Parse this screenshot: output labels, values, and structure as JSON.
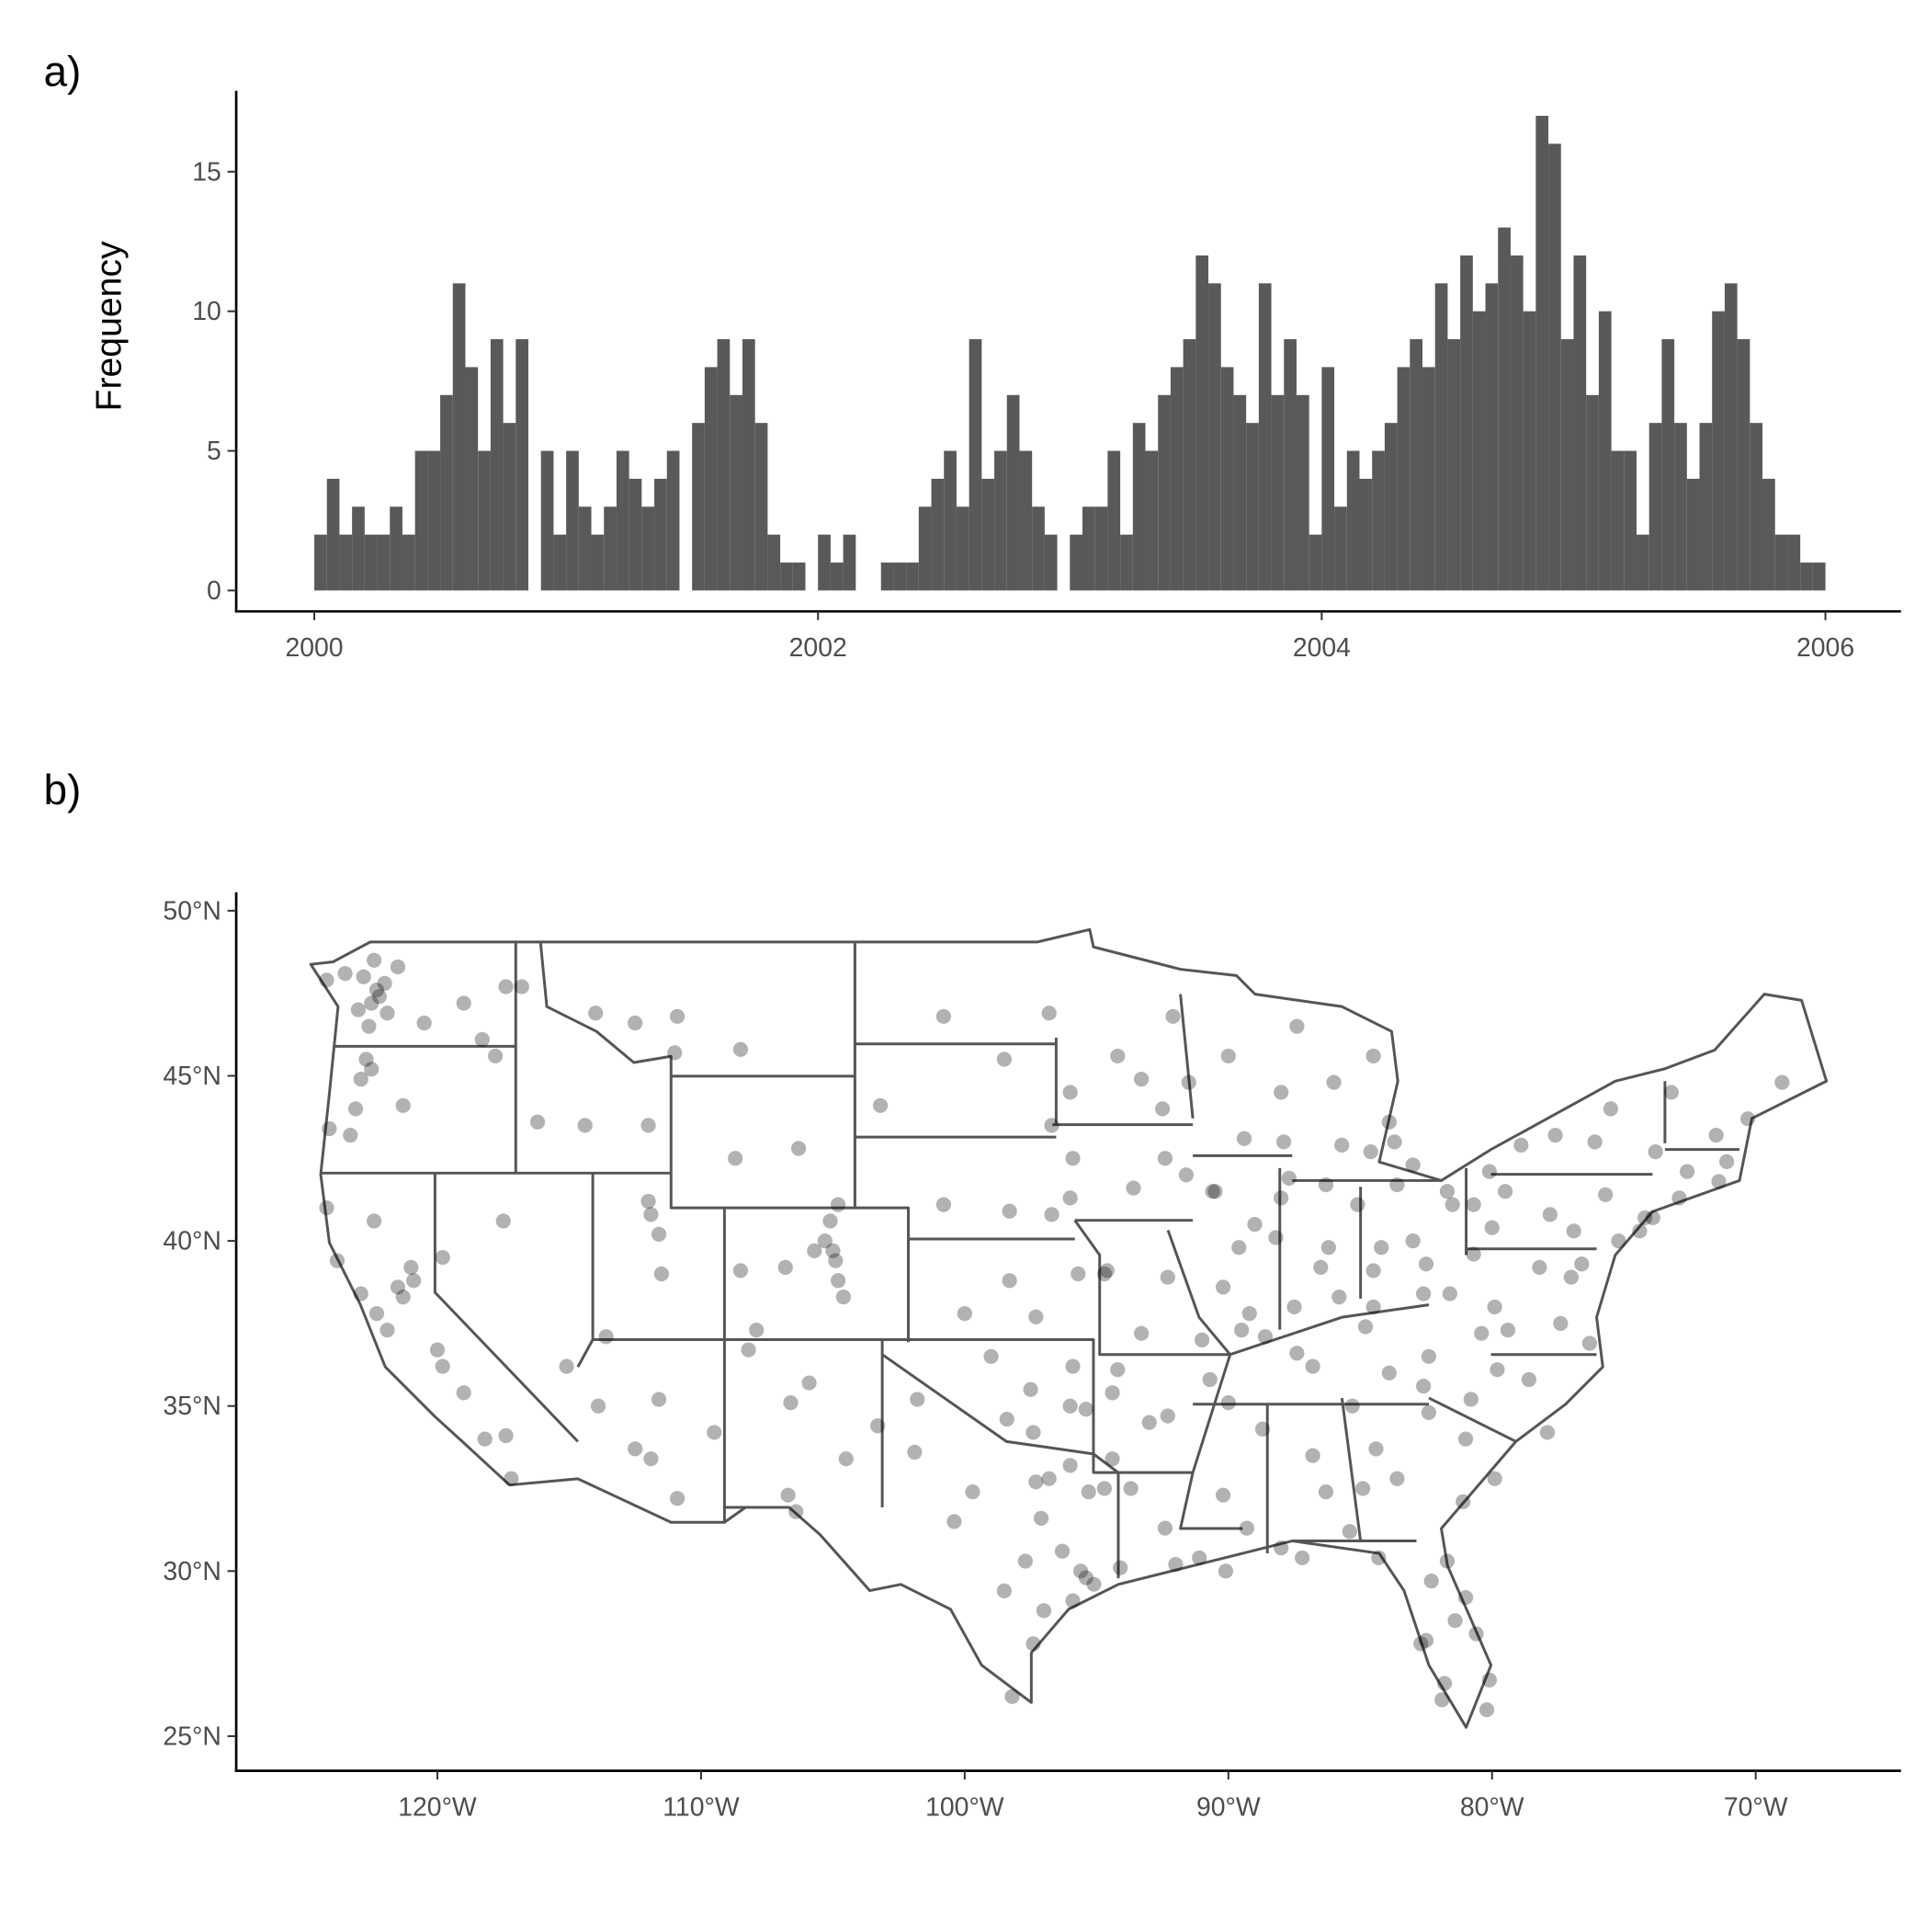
{
  "chart_data": [
    {
      "type": "histogram",
      "panel_label": "a)",
      "y_label": "Frequency",
      "color": "#595959",
      "bins": [
        2000,
        2000.05,
        2000.1,
        2000.15,
        2000.2,
        2000.25,
        2000.3,
        2000.35,
        2000.4,
        2000.45,
        2000.5,
        2000.55,
        2000.6,
        2000.65,
        2000.7,
        2000.75,
        2000.8,
        2000.85,
        2000.9,
        2000.95,
        2001,
        2001.05,
        2001.1,
        2001.15,
        2001.2,
        2001.25,
        2001.3,
        2001.35,
        2001.4,
        2001.45,
        2001.5,
        2001.55,
        2001.6,
        2001.65,
        2001.7,
        2001.75,
        2001.8,
        2001.85,
        2001.9,
        2001.95,
        2002,
        2002.05,
        2002.1,
        2002.15,
        2002.2,
        2002.25,
        2002.3,
        2002.35,
        2002.4,
        2002.45,
        2002.5,
        2002.55,
        2002.6,
        2002.65,
        2002.7,
        2002.75,
        2002.8,
        2002.85,
        2002.9,
        2002.95,
        2003,
        2003.05,
        2003.1,
        2003.15,
        2003.2,
        2003.25,
        2003.3,
        2003.35,
        2003.4,
        2003.45,
        2003.5,
        2003.55,
        2003.6,
        2003.65,
        2003.7,
        2003.75,
        2003.8,
        2003.85,
        2003.9,
        2003.95,
        2004,
        2004.05,
        2004.1,
        2004.15,
        2004.2,
        2004.25,
        2004.3,
        2004.35,
        2004.4,
        2004.45,
        2004.5,
        2004.55,
        2004.6,
        2004.65,
        2004.7,
        2004.75,
        2004.8,
        2004.85,
        2004.9,
        2004.95,
        2005,
        2005.05,
        2005.1,
        2005.15,
        2005.2,
        2005.25,
        2005.3,
        2005.35,
        2005.4,
        2005.45,
        2005.5,
        2005.55,
        2005.6,
        2005.65,
        2005.7,
        2005.75,
        2005.8,
        2005.85,
        2005.9,
        2005.95,
        2006
      ],
      "values": [
        2,
        4,
        2,
        3,
        2,
        2,
        3,
        2,
        5,
        5,
        7,
        11,
        8,
        5,
        9,
        6,
        9,
        0,
        5,
        2,
        5,
        3,
        2,
        3,
        5,
        4,
        3,
        4,
        5,
        0,
        6,
        8,
        9,
        7,
        9,
        6,
        2,
        1,
        1,
        0,
        2,
        1,
        2,
        0,
        0,
        1,
        1,
        1,
        3,
        4,
        5,
        3,
        9,
        4,
        5,
        7,
        5,
        3,
        2,
        0,
        2,
        3,
        3,
        5,
        2,
        6,
        5,
        7,
        8,
        9,
        12,
        11,
        8,
        7,
        6,
        11,
        7,
        9,
        7,
        2,
        8,
        3,
        5,
        4,
        5,
        6,
        8,
        9,
        8,
        11,
        9,
        12,
        10,
        11,
        13,
        12,
        10,
        17,
        16,
        9,
        12,
        7,
        10,
        5,
        5,
        2,
        6,
        9,
        6,
        4,
        6,
        10,
        11,
        9,
        6,
        4,
        2,
        2,
        1,
        1
      ],
      "xlim": [
        1999.69,
        2006.3
      ],
      "xticks": [
        2000,
        2002,
        2004,
        2006
      ],
      "ylim": [
        -0.75,
        17.9
      ],
      "yticks": [
        0,
        5,
        10,
        15
      ]
    },
    {
      "type": "scatter",
      "panel_label": "b)",
      "color": "#000000",
      "opacity": 0.3,
      "x": [
        -122.3,
        -122.2,
        -122.5,
        -122.0,
        -121.9,
        -122.6,
        -123.0,
        -122.8,
        -122.4,
        -123.5,
        -124.2,
        -121.5,
        -122.7,
        -122.9,
        -123.1,
        -122.5,
        -123.3,
        -124.1,
        -121.3,
        -117.8,
        -118.3,
        -117.4,
        -119.0,
        -120.5,
        -116.2,
        -114.4,
        -112.0,
        -116.8,
        -111.0,
        -108.5,
        -112.5,
        -114.0,
        -110.9,
        -124.2,
        -122.4,
        -121.5,
        -121.3,
        -120.9,
        -122.3,
        -121.9,
        -120.0,
        -119.8,
        -119.0,
        -118.2,
        -117.4,
        -117.2,
        -121.0,
        -122.9,
        -123.8,
        -119.8,
        -115.1,
        -117.5,
        -111.9,
        -111.6,
        -112.0,
        -111.5,
        -113.6,
        -111.9,
        -110.9,
        -111.6,
        -113.9,
        -109.5,
        -112.5,
        -105.0,
        -104.8,
        -105.3,
        -104.6,
        -105.1,
        -106.8,
        -107.9,
        -108.5,
        -104.9,
        -105.7,
        -106.6,
        -105.9,
        -106.7,
        -104.5,
        -108.2,
        -103.3,
        -104.8,
        -106.3,
        -108.7,
        -100.8,
        -96.8,
        -103.2,
        -96.7,
        -98.5,
        -97.7,
        -96.8,
        -97.3,
        -95.4,
        -95.1,
        -95.6,
        -98.5,
        -101.8,
        -101.9,
        -106.4,
        -97.4,
        -99.7,
        -94.1,
        -95.3,
        -94.7,
        -96.3,
        -97.1,
        -100.4,
        -98.2,
        -96.0,
        -94.4,
        -95.9,
        -97.0,
        -97.5,
        -95.9,
        -97.4,
        -98.4,
        -95.4,
        -99.0,
        -96.0,
        -97.3,
        -95.7,
        -94.7,
        -98.3,
        -100.0,
        -96.0,
        -96.7,
        -98.3,
        -100.8,
        -91.1,
        -93.7,
        -92.0,
        -90.1,
        -92.4,
        -92.3,
        -94.2,
        -90.7,
        -93.0,
        -94.4,
        -90.2,
        -94.6,
        -93.3,
        -92.3,
        -91.0,
        -89.5,
        -93.6,
        -91.6,
        -95.9,
        -90.6,
        -92.4,
        -93.3,
        -92.1,
        -94.2,
        -96.0,
        -92.5,
        -87.9,
        -89.4,
        -88.0,
        -91.5,
        -90.0,
        -87.7,
        -89.6,
        -89.0,
        -88.2,
        -89.2,
        -90.5,
        -88.0,
        -86.2,
        -85.1,
        -87.5,
        -86.5,
        -86.3,
        -83.0,
        -85.7,
        -84.6,
        -83.7,
        -86.0,
        -84.5,
        -87.4,
        -83.9,
        -81.7,
        -84.5,
        -83.0,
        -81.5,
        -84.2,
        -83.6,
        -80.7,
        -82.5,
        -85.8,
        -84.5,
        -86.8,
        -90.0,
        -83.9,
        -85.3,
        -87.4,
        -88.6,
        -82.4,
        -84.8,
        -82.6,
        -81.6,
        -80.0,
        -80.7,
        -79.9,
        -77.4,
        -76.3,
        -77.0,
        -76.6,
        -79.4,
        -80.4,
        -78.2,
        -75.2,
        -76.9,
        -77.8,
        -79.5,
        -80.1,
        -75.7,
        -73.8,
        -76.1,
        -77.6,
        -78.9,
        -73.9,
        -74.2,
        -72.9,
        -71.4,
        -71.1,
        -72.6,
        -71.5,
        -73.2,
        -70.3,
        -69.0,
        -75.5,
        -74.4,
        -80.8,
        -78.6,
        -79.8,
        -77.9,
        -82.6,
        -81.0,
        -79.9,
        -82.4,
        -84.4,
        -81.1,
        -83.6,
        -84.9,
        -86.8,
        -86.3,
        -88.0,
        -85.4,
        -90.2,
        -88.7,
        -89.3,
        -81.7,
        -81.4,
        -82.5,
        -82.7,
        -80.2,
        -80.1,
        -81.8,
        -84.3,
        -87.2,
        -82.3,
        -81.0,
        -80.6,
        -81.9
      ],
      "y": [
        47.6,
        47.4,
        47.2,
        47.8,
        46.9,
        46.5,
        47.0,
        48.0,
        48.5,
        48.1,
        47.9,
        48.3,
        45.5,
        44.9,
        44.0,
        45.2,
        43.2,
        43.4,
        44.1,
        45.6,
        46.1,
        47.7,
        47.2,
        46.6,
        43.6,
        43.5,
        43.5,
        47.7,
        45.7,
        45.8,
        46.6,
        46.9,
        46.8,
        41.0,
        40.6,
        38.6,
        38.3,
        38.8,
        37.8,
        37.3,
        36.7,
        36.2,
        35.4,
        34.0,
        34.1,
        32.8,
        39.2,
        38.4,
        39.4,
        39.5,
        36.2,
        40.6,
        40.8,
        40.2,
        41.2,
        39.0,
        37.1,
        33.4,
        32.2,
        35.2,
        35.0,
        34.2,
        33.7,
        39.7,
        38.8,
        40.0,
        38.3,
        40.6,
        39.2,
        37.3,
        39.1,
        39.4,
        39.7,
        35.1,
        35.7,
        32.3,
        33.4,
        36.7,
        34.4,
        41.1,
        42.8,
        42.5,
        46.8,
        46.9,
        44.1,
        43.5,
        45.5,
        30.3,
        32.8,
        32.7,
        29.8,
        29.6,
        30.0,
        29.4,
        35.2,
        33.6,
        31.8,
        27.8,
        32.4,
        30.1,
        32.4,
        32.5,
        30.6,
        31.6,
        31.5,
        26.2,
        33.2,
        33.4,
        29.1,
        28.8,
        35.5,
        36.2,
        34.2,
        34.6,
        34.9,
        36.5,
        35.0,
        37.7,
        39.0,
        39.0,
        38.8,
        37.8,
        41.3,
        40.8,
        40.9,
        41.1,
        30.4,
        32.5,
        30.2,
        30.0,
        31.3,
        34.7,
        36.1,
        35.8,
        34.5,
        35.4,
        38.6,
        39.1,
        37.2,
        38.9,
        37.0,
        37.3,
        41.6,
        42.0,
        42.5,
        41.5,
        42.5,
        44.9,
        46.8,
        45.6,
        44.5,
        44.0,
        43.0,
        43.1,
        44.5,
        44.8,
        45.6,
        41.9,
        39.8,
        40.5,
        40.1,
        37.8,
        41.5,
        41.3,
        39.8,
        41.1,
        38.0,
        39.2,
        41.7,
        42.3,
        42.9,
        42.7,
        43.0,
        44.8,
        45.6,
        46.5,
        43.6,
        41.5,
        39.1,
        40.0,
        41.1,
        39.8,
        41.7,
        41.1,
        39.3,
        38.3,
        38.0,
        36.2,
        35.1,
        36.0,
        35.0,
        36.6,
        37.1,
        36.5,
        37.4,
        38.4,
        38.4,
        40.4,
        39.6,
        38.0,
        37.5,
        36.9,
        38.9,
        39.3,
        37.3,
        37.2,
        39.2,
        40.0,
        40.3,
        40.8,
        41.5,
        42.1,
        41.4,
        42.7,
        43.0,
        43.2,
        42.9,
        40.7,
        40.7,
        41.3,
        41.8,
        42.4,
        42.1,
        43.2,
        44.5,
        43.7,
        44.8,
        44.0,
        40.3,
        35.2,
        35.8,
        36.1,
        34.2,
        35.6,
        34.0,
        32.8,
        34.8,
        33.7,
        32.1,
        32.8,
        32.5,
        33.5,
        32.4,
        30.7,
        31.2,
        32.3,
        34.3,
        31.3,
        30.3,
        28.5,
        27.9,
        27.8,
        25.8,
        26.7,
        26.6,
        30.4,
        30.4,
        29.7,
        29.2,
        28.1,
        26.1
      ],
      "xlim": [
        -127.63,
        -64.49
      ],
      "xticks": [
        {
          "value": -120,
          "label": "120°W"
        },
        {
          "value": -110,
          "label": "110°W"
        },
        {
          "value": -100,
          "label": "100°W"
        },
        {
          "value": -90,
          "label": "90°W"
        },
        {
          "value": -80,
          "label": "80°W"
        },
        {
          "value": -70,
          "label": "70°W"
        }
      ],
      "ylim": [
        23.95,
        50.56
      ],
      "yticks": [
        {
          "value": 25,
          "label": "25°N"
        },
        {
          "value": 30,
          "label": "30°N"
        },
        {
          "value": 35,
          "label": "35°N"
        },
        {
          "value": 40,
          "label": "40°N"
        },
        {
          "value": 45,
          "label": "45°N"
        },
        {
          "value": 50,
          "label": "50°N"
        }
      ]
    }
  ]
}
